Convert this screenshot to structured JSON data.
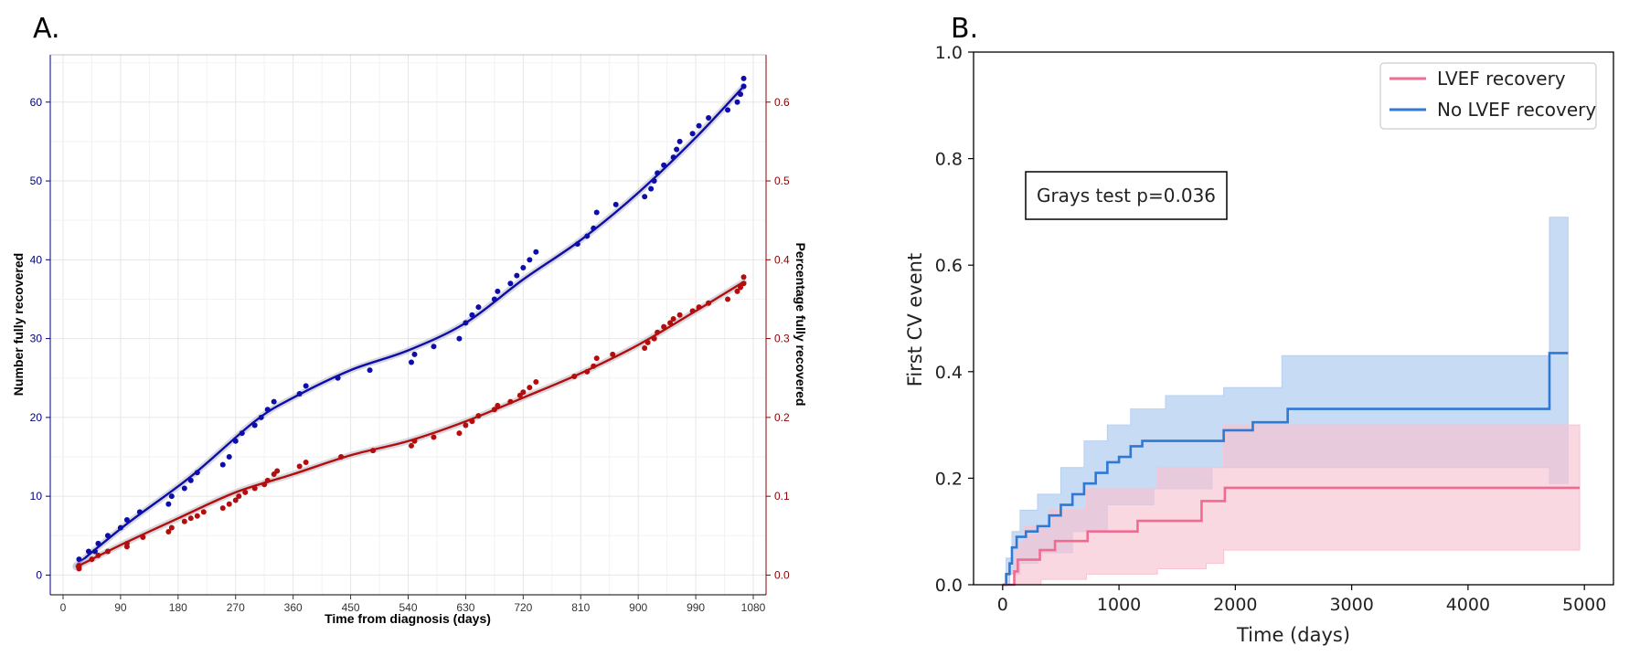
{
  "panels": {
    "a_label": "A.",
    "b_label": "B."
  },
  "colors": {
    "blue_series": "#0d0dab",
    "red_series": "#b30d0d",
    "km_recovery": "#f06b8f",
    "km_recovery_band": "#f8c3d1",
    "km_no_recovery": "#2f78d3",
    "km_no_recovery_band": "#b6cff0"
  },
  "chart_data": [
    {
      "type": "scatter",
      "title": "",
      "xlabel": "Time from diagnosis (days)",
      "ylabel": "Number fully recovered",
      "y2label": "Percentage fully recovered",
      "xlim": [
        -20,
        1100
      ],
      "ylim": [
        -2.5,
        66
      ],
      "y2lim": [
        -0.025,
        0.66
      ],
      "x_ticks": [
        0,
        90,
        180,
        270,
        360,
        450,
        540,
        630,
        720,
        810,
        900,
        990,
        1080
      ],
      "y_ticks": [
        0,
        10,
        20,
        30,
        40,
        50,
        60
      ],
      "y2_ticks": [
        "0.0",
        "0.1",
        "0.2",
        "0.3",
        "0.4",
        "0.5",
        "0.6"
      ],
      "grid": true,
      "series": [
        {
          "name": "Number fully recovered",
          "axis": "left",
          "points": [
            [
              25,
              1
            ],
            [
              25,
              2
            ],
            [
              40,
              3
            ],
            [
              50,
              3
            ],
            [
              55,
              4
            ],
            [
              70,
              5
            ],
            [
              90,
              6
            ],
            [
              100,
              7
            ],
            [
              120,
              8
            ],
            [
              165,
              9
            ],
            [
              170,
              10
            ],
            [
              190,
              11
            ],
            [
              200,
              12
            ],
            [
              210,
              13
            ],
            [
              250,
              14
            ],
            [
              260,
              15
            ],
            [
              270,
              17
            ],
            [
              280,
              18
            ],
            [
              300,
              19
            ],
            [
              310,
              20
            ],
            [
              320,
              21
            ],
            [
              330,
              22
            ],
            [
              370,
              23
            ],
            [
              380,
              24
            ],
            [
              430,
              25
            ],
            [
              480,
              26
            ],
            [
              545,
              27
            ],
            [
              550,
              28
            ],
            [
              580,
              29
            ],
            [
              620,
              30
            ],
            [
              630,
              32
            ],
            [
              640,
              33
            ],
            [
              650,
              34
            ],
            [
              675,
              35
            ],
            [
              680,
              36
            ],
            [
              700,
              37
            ],
            [
              710,
              38
            ],
            [
              720,
              39
            ],
            [
              730,
              40
            ],
            [
              740,
              41
            ],
            [
              805,
              42
            ],
            [
              820,
              43
            ],
            [
              830,
              44
            ],
            [
              835,
              46
            ],
            [
              865,
              47
            ],
            [
              910,
              48
            ],
            [
              920,
              49
            ],
            [
              925,
              50
            ],
            [
              930,
              51
            ],
            [
              940,
              52
            ],
            [
              955,
              53
            ],
            [
              960,
              54
            ],
            [
              965,
              55
            ],
            [
              985,
              56
            ],
            [
              995,
              57
            ],
            [
              1010,
              58
            ],
            [
              1040,
              59
            ],
            [
              1055,
              60
            ],
            [
              1060,
              61
            ],
            [
              1065,
              62
            ],
            [
              1065,
              63
            ]
          ],
          "fit": [
            [
              20,
              1.2
            ],
            [
              100,
              6.5
            ],
            [
              200,
              12.5
            ],
            [
              300,
              19.5
            ],
            [
              360,
              22.5
            ],
            [
              450,
              26
            ],
            [
              540,
              28.5
            ],
            [
              630,
              32
            ],
            [
              720,
              37.5
            ],
            [
              810,
              42.5
            ],
            [
              900,
              48.5
            ],
            [
              990,
              55.5
            ],
            [
              1065,
              62
            ]
          ]
        },
        {
          "name": "Percentage fully recovered",
          "axis": "right",
          "points": [
            [
              25,
              0.008
            ],
            [
              25,
              0.012
            ],
            [
              45,
              0.02
            ],
            [
              55,
              0.025
            ],
            [
              70,
              0.03
            ],
            [
              100,
              0.036
            ],
            [
              100,
              0.04
            ],
            [
              125,
              0.048
            ],
            [
              165,
              0.055
            ],
            [
              170,
              0.06
            ],
            [
              190,
              0.068
            ],
            [
              200,
              0.072
            ],
            [
              210,
              0.075
            ],
            [
              220,
              0.08
            ],
            [
              250,
              0.085
            ],
            [
              260,
              0.09
            ],
            [
              270,
              0.095
            ],
            [
              275,
              0.1
            ],
            [
              285,
              0.105
            ],
            [
              300,
              0.11
            ],
            [
              315,
              0.115
            ],
            [
              320,
              0.12
            ],
            [
              330,
              0.128
            ],
            [
              335,
              0.132
            ],
            [
              370,
              0.138
            ],
            [
              380,
              0.143
            ],
            [
              435,
              0.15
            ],
            [
              485,
              0.158
            ],
            [
              545,
              0.164
            ],
            [
              550,
              0.17
            ],
            [
              580,
              0.175
            ],
            [
              620,
              0.18
            ],
            [
              630,
              0.19
            ],
            [
              640,
              0.195
            ],
            [
              650,
              0.202
            ],
            [
              675,
              0.21
            ],
            [
              680,
              0.215
            ],
            [
              700,
              0.22
            ],
            [
              715,
              0.228
            ],
            [
              720,
              0.232
            ],
            [
              730,
              0.238
            ],
            [
              740,
              0.245
            ],
            [
              800,
              0.252
            ],
            [
              820,
              0.258
            ],
            [
              830,
              0.265
            ],
            [
              835,
              0.275
            ],
            [
              860,
              0.28
            ],
            [
              910,
              0.288
            ],
            [
              915,
              0.295
            ],
            [
              925,
              0.3
            ],
            [
              930,
              0.308
            ],
            [
              940,
              0.315
            ],
            [
              950,
              0.32
            ],
            [
              955,
              0.325
            ],
            [
              965,
              0.33
            ],
            [
              985,
              0.335
            ],
            [
              995,
              0.34
            ],
            [
              1010,
              0.345
            ],
            [
              1040,
              0.35
            ],
            [
              1055,
              0.36
            ],
            [
              1060,
              0.365
            ],
            [
              1065,
              0.37
            ],
            [
              1065,
              0.378
            ]
          ],
          "fit": [
            [
              20,
              0.01
            ],
            [
              100,
              0.042
            ],
            [
              180,
              0.072
            ],
            [
              270,
              0.105
            ],
            [
              360,
              0.128
            ],
            [
              450,
              0.152
            ],
            [
              540,
              0.17
            ],
            [
              630,
              0.195
            ],
            [
              720,
              0.225
            ],
            [
              810,
              0.256
            ],
            [
              900,
              0.292
            ],
            [
              990,
              0.335
            ],
            [
              1065,
              0.372
            ]
          ]
        }
      ]
    },
    {
      "type": "line",
      "title": "",
      "xlabel": "Time (days)",
      "ylabel": "First CV event",
      "xlim": [
        -250,
        5250
      ],
      "ylim": [
        0.0,
        1.0
      ],
      "x_ticks": [
        0,
        1000,
        2000,
        3000,
        4000,
        5000
      ],
      "y_ticks": [
        "0.0",
        "0.2",
        "0.4",
        "0.6",
        "0.8",
        "1.0"
      ],
      "grid": false,
      "legend": "top-right",
      "annotation": "Grays test p=0.036",
      "series": [
        {
          "name": "LVEF recovery",
          "step": [
            [
              0,
              0
            ],
            [
              50,
              0
            ],
            [
              100,
              0.025
            ],
            [
              130,
              0.047
            ],
            [
              300,
              0.047
            ],
            [
              320,
              0.065
            ],
            [
              420,
              0.065
            ],
            [
              450,
              0.082
            ],
            [
              720,
              0.082
            ],
            [
              730,
              0.1
            ],
            [
              1150,
              0.1
            ],
            [
              1160,
              0.12
            ],
            [
              1700,
              0.12
            ],
            [
              1710,
              0.157
            ],
            [
              1900,
              0.157
            ],
            [
              1910,
              0.182
            ],
            [
              4960,
              0.182
            ]
          ],
          "ci_upper": [
            [
              0,
              0
            ],
            [
              70,
              0
            ],
            [
              100,
              0.08
            ],
            [
              180,
              0.11
            ],
            [
              400,
              0.14
            ],
            [
              720,
              0.18
            ],
            [
              1330,
              0.22
            ],
            [
              1900,
              0.3
            ],
            [
              4960,
              0.3
            ]
          ],
          "ci_lower": [
            [
              0,
              0
            ],
            [
              100,
              0
            ],
            [
              330,
              0.01
            ],
            [
              720,
              0.02
            ],
            [
              1330,
              0.03
            ],
            [
              1750,
              0.04
            ],
            [
              1900,
              0.065
            ],
            [
              4960,
              0.065
            ]
          ]
        },
        {
          "name": "No LVEF recovery",
          "step": [
            [
              0,
              0
            ],
            [
              30,
              0.02
            ],
            [
              60,
              0.04
            ],
            [
              80,
              0.07
            ],
            [
              120,
              0.09
            ],
            [
              200,
              0.1
            ],
            [
              300,
              0.11
            ],
            [
              400,
              0.13
            ],
            [
              500,
              0.15
            ],
            [
              600,
              0.17
            ],
            [
              700,
              0.19
            ],
            [
              800,
              0.21
            ],
            [
              900,
              0.23
            ],
            [
              1000,
              0.24
            ],
            [
              1100,
              0.26
            ],
            [
              1200,
              0.27
            ],
            [
              1700,
              0.27
            ],
            [
              1900,
              0.29
            ],
            [
              2150,
              0.305
            ],
            [
              2450,
              0.33
            ],
            [
              4700,
              0.33
            ],
            [
              4700,
              0.435
            ],
            [
              4860,
              0.435
            ]
          ],
          "ci_upper": [
            [
              0,
              0
            ],
            [
              30,
              0.05
            ],
            [
              80,
              0.1
            ],
            [
              150,
              0.14
            ],
            [
              300,
              0.17
            ],
            [
              500,
              0.22
            ],
            [
              700,
              0.27
            ],
            [
              900,
              0.3
            ],
            [
              1100,
              0.33
            ],
            [
              1400,
              0.355
            ],
            [
              1900,
              0.37
            ],
            [
              2400,
              0.43
            ],
            [
              4700,
              0.43
            ],
            [
              4700,
              0.69
            ],
            [
              4860,
              0.69
            ]
          ],
          "ci_lower": [
            [
              0,
              0
            ],
            [
              60,
              0.02
            ],
            [
              150,
              0.04
            ],
            [
              300,
              0.06
            ],
            [
              600,
              0.1
            ],
            [
              900,
              0.15
            ],
            [
              1300,
              0.18
            ],
            [
              1800,
              0.22
            ],
            [
              2400,
              0.22
            ],
            [
              4700,
              0.22
            ],
            [
              4700,
              0.19
            ],
            [
              4860,
              0.19
            ]
          ]
        }
      ]
    }
  ]
}
